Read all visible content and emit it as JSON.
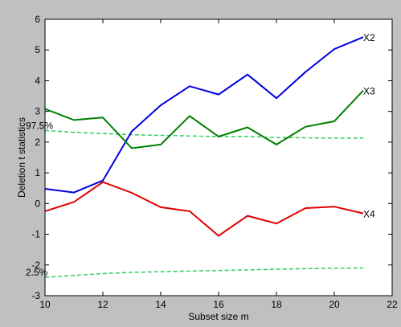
{
  "chart_data": {
    "type": "line",
    "title": "",
    "xlabel": "Subset size m",
    "ylabel": "Deletion t statistics",
    "xlim": [
      10,
      22
    ],
    "ylim": [
      -3,
      6
    ],
    "xticks": [
      10,
      12,
      14,
      16,
      18,
      20,
      22
    ],
    "yticks": [
      -3,
      -2,
      -1,
      0,
      1,
      2,
      3,
      4,
      5,
      6
    ],
    "grid": false,
    "background_color": "#ffffff",
    "figure_color": "#c0c0c0",
    "x": [
      10,
      11,
      12,
      13,
      14,
      15,
      16,
      17,
      18,
      19,
      20,
      21
    ],
    "series": [
      {
        "name": "X2",
        "color": "#0000e0",
        "style": "solid",
        "values": [
          0.48,
          0.36,
          0.75,
          2.35,
          3.2,
          3.82,
          3.55,
          4.2,
          3.43,
          4.28,
          5.03,
          5.42
        ]
      },
      {
        "name": "X3",
        "color": "#008000",
        "style": "solid",
        "values": [
          3.08,
          2.72,
          2.8,
          1.8,
          1.92,
          2.85,
          2.18,
          2.48,
          1.92,
          2.5,
          2.68,
          3.68
        ]
      },
      {
        "name": "X4",
        "color": "#e00000",
        "style": "solid",
        "values": [
          -0.25,
          0.05,
          0.7,
          0.35,
          -0.12,
          -0.25,
          -1.05,
          -0.4,
          -0.65,
          -0.15,
          -0.1,
          -0.32
        ]
      }
    ],
    "bands": [
      {
        "name": "97.5%",
        "color": "#33cc66",
        "style": "dashed",
        "values": [
          2.38,
          2.32,
          2.28,
          2.24,
          2.22,
          2.2,
          2.18,
          2.18,
          2.15,
          2.14,
          2.13,
          2.13
        ]
      },
      {
        "name": "2.5%",
        "color": "#33cc66",
        "style": "dashed",
        "values": [
          -2.4,
          -2.34,
          -2.28,
          -2.24,
          -2.22,
          -2.2,
          -2.18,
          -2.16,
          -2.14,
          -2.12,
          -2.11,
          -2.1
        ]
      }
    ]
  }
}
